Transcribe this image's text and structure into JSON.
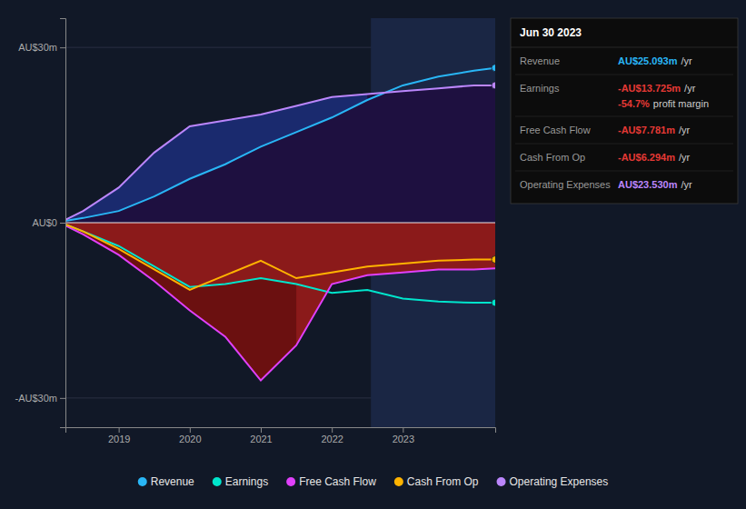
{
  "chart_data": {
    "type": "line",
    "title": "Jun 30 2023",
    "x": [
      2018.25,
      2018.5,
      2019.0,
      2019.5,
      2020.0,
      2020.5,
      2021.0,
      2021.5,
      2022.0,
      2022.5,
      2023.0,
      2023.5,
      2024.0,
      2024.3
    ],
    "series": [
      {
        "name": "Revenue",
        "color": "#29b6f6",
        "marker": "end",
        "values": [
          0.3,
          0.8,
          2.0,
          4.5,
          7.5,
          10.0,
          13.0,
          15.5,
          18.0,
          21.0,
          23.5,
          25.0,
          26.0,
          26.5
        ]
      },
      {
        "name": "Earnings",
        "color": "#00e5cc",
        "marker": "end",
        "values": [
          -0.3,
          -1.5,
          -4.0,
          -7.5,
          -11.0,
          -10.5,
          -9.5,
          -10.5,
          -12.0,
          -11.5,
          -13.0,
          -13.5,
          -13.7,
          -13.7
        ]
      },
      {
        "name": "Free Cash Flow",
        "color": "#e040fb",
        "values": [
          -0.5,
          -2.0,
          -5.5,
          -10.0,
          -15.0,
          -19.5,
          -27.0,
          -21.0,
          -10.5,
          -9.0,
          -8.5,
          -8.0,
          -8.0,
          -7.8
        ]
      },
      {
        "name": "Cash From Op",
        "color": "#ffb300",
        "marker": "end",
        "values": [
          -0.3,
          -1.5,
          -4.5,
          -8.0,
          -11.5,
          -9.0,
          -6.5,
          -9.5,
          -8.5,
          -7.5,
          -7.0,
          -6.5,
          -6.3,
          -6.3
        ]
      },
      {
        "name": "Operating Expenses",
        "color": "#bb86fc",
        "marker": "end",
        "values": [
          0.5,
          2.0,
          6.0,
          12.0,
          16.5,
          17.5,
          18.5,
          20.0,
          21.5,
          22.0,
          22.5,
          23.0,
          23.5,
          23.5
        ]
      }
    ],
    "xlim": [
      2018.25,
      2024.3
    ],
    "xticks": [
      2019,
      2020,
      2021,
      2022,
      2023
    ],
    "ylim": [
      -35,
      35
    ],
    "yticks": [
      {
        "value": -30,
        "label": "-AU$30m"
      },
      {
        "value": 0,
        "label": "AU$0"
      },
      {
        "value": 30,
        "label": "AU$30m"
      }
    ],
    "grid": "y",
    "legend": "bottom",
    "zero_line": 0,
    "highlight": {
      "x": [
        2022.55,
        2024.3
      ],
      "color": "#1a2644"
    },
    "fills": [
      {
        "upper": "Operating Expenses",
        "lower": 0,
        "color": "#1e1040"
      },
      {
        "upper": 0,
        "lower": "Free Cash Flow",
        "color": "#8b1a1a"
      },
      {
        "upper": "Operating Expenses",
        "lower": "Revenue",
        "color": "#1a2a6e"
      },
      {
        "upper": "Earnings",
        "lower": "Free Cash Flow",
        "color": "#6b1010"
      }
    ],
    "table": {
      "unit": "/yr",
      "rows": [
        {
          "label": "Revenue",
          "value": "AU$25.093m",
          "color": "#29b6f6"
        },
        {
          "label": "Earnings",
          "value": "-AU$13.725m",
          "color": "#e53935",
          "margin": "-54.7%",
          "margin_label": "profit margin",
          "margin_color": "#e53935"
        },
        {
          "label": "Free Cash Flow",
          "value": "-AU$7.781m",
          "color": "#e53935"
        },
        {
          "label": "Cash From Op",
          "value": "-AU$6.294m",
          "color": "#e53935"
        },
        {
          "label": "Operating Expenses",
          "value": "AU$23.530m",
          "color": "#bb86fc"
        }
      ]
    }
  }
}
